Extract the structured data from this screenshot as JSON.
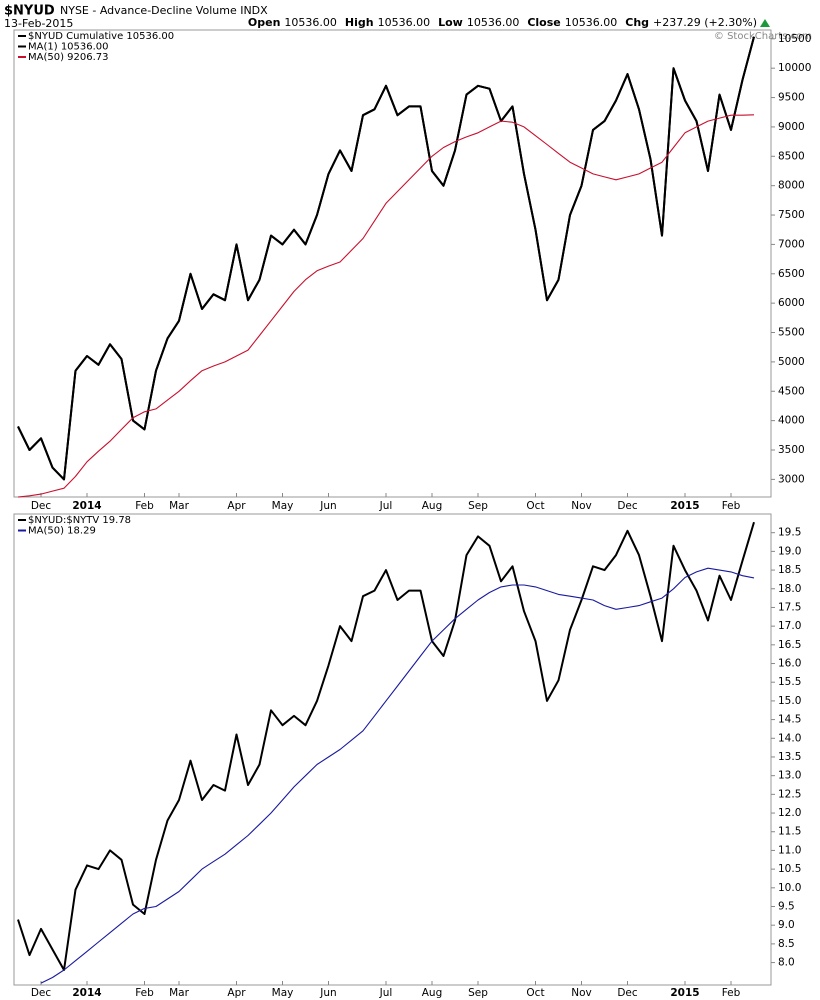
{
  "header": {
    "symbol": "$NYUD",
    "description": "NYSE - Advance-Decline Volume INDX",
    "date": "13-Feb-2015",
    "quote": [
      {
        "label": "Open",
        "value": "10536.00"
      },
      {
        "label": "High",
        "value": "10536.00"
      },
      {
        "label": "Low",
        "value": "10536.00"
      },
      {
        "label": "Close",
        "value": "10536.00"
      },
      {
        "label": "Chg",
        "value": "+237.29 (+2.30%)"
      }
    ],
    "watermark": "© StockCharts.com"
  },
  "chart_data": [
    {
      "type": "line",
      "categories": [
        null,
        null,
        "Dec",
        null,
        null,
        null,
        "2014",
        null,
        null,
        null,
        null,
        "Feb",
        null,
        null,
        "Mar",
        null,
        null,
        null,
        null,
        "Apr",
        null,
        null,
        null,
        "May",
        null,
        null,
        null,
        "Jun",
        null,
        null,
        null,
        null,
        "Jul",
        null,
        null,
        null,
        "Aug",
        null,
        null,
        null,
        "Sep",
        null,
        null,
        null,
        null,
        "Oct",
        null,
        null,
        null,
        "Nov",
        null,
        null,
        null,
        "Dec",
        null,
        null,
        null,
        null,
        "2015",
        null,
        null,
        null,
        "Feb",
        null,
        null
      ],
      "series": [
        {
          "name": "$NYUD Cumulative 10536.00",
          "color": "#000000",
          "values": [
            3900,
            3500,
            3700,
            3200,
            3000,
            4850,
            5100,
            4950,
            5300,
            5050,
            4000,
            3850,
            4850,
            5400,
            5700,
            6500,
            5900,
            6150,
            6050,
            7000,
            6050,
            6400,
            7150,
            7000,
            7250,
            7000,
            7500,
            8200,
            8600,
            8250,
            9200,
            9300,
            9700,
            9200,
            9350,
            9350,
            8250,
            8000,
            8600,
            9550,
            9700,
            9650,
            9100,
            9350,
            8200,
            7250,
            6050,
            6400,
            7500,
            8000,
            8950,
            9100,
            9450,
            9900,
            9300,
            8450,
            7150,
            10000,
            9450,
            9100,
            8250,
            9550,
            8950,
            9800,
            10536
          ]
        },
        {
          "name": "MA(1) 10536.00",
          "color": "#000000",
          "values": [
            3900,
            3500,
            3700,
            3200,
            3000,
            4850,
            5100,
            4950,
            5300,
            5050,
            4000,
            3850,
            4850,
            5400,
            5700,
            6500,
            5900,
            6150,
            6050,
            7000,
            6050,
            6400,
            7150,
            7000,
            7250,
            7000,
            7500,
            8200,
            8600,
            8250,
            9200,
            9300,
            9700,
            9200,
            9350,
            9350,
            8250,
            8000,
            8600,
            9550,
            9700,
            9650,
            9100,
            9350,
            8200,
            7250,
            6050,
            6400,
            7500,
            8000,
            8950,
            9100,
            9450,
            9900,
            9300,
            8450,
            7150,
            10000,
            9450,
            9100,
            8250,
            9550,
            8950,
            9800,
            10536
          ]
        },
        {
          "name": "MA(50) 9206.73",
          "color": "#c8102e",
          "values": [
            2700,
            2720,
            2750,
            2800,
            2850,
            3050,
            3300,
            3480,
            3650,
            3850,
            4050,
            4150,
            4200,
            4350,
            4500,
            4680,
            4850,
            4930,
            5000,
            5100,
            5200,
            5450,
            5700,
            5950,
            6200,
            6400,
            6550,
            6630,
            6700,
            6900,
            7100,
            7400,
            7700,
            7900,
            8100,
            8300,
            8500,
            8650,
            8750,
            8830,
            8900,
            9000,
            9100,
            9080,
            9000,
            8850,
            8700,
            8550,
            8400,
            8300,
            8200,
            8150,
            8100,
            8150,
            8200,
            8300,
            8400,
            8650,
            8900,
            9000,
            9100,
            9150,
            9200,
            9200,
            9206.73
          ]
        }
      ],
      "ylim": [
        2700,
        10650
      ],
      "yticks": [
        3000,
        3500,
        4000,
        4500,
        5000,
        5500,
        6000,
        6500,
        7000,
        7500,
        8000,
        8500,
        9000,
        9500,
        10000,
        10500
      ]
    },
    {
      "type": "line",
      "categories": [
        null,
        null,
        "Dec",
        null,
        null,
        null,
        "2014",
        null,
        null,
        null,
        null,
        "Feb",
        null,
        null,
        "Mar",
        null,
        null,
        null,
        null,
        "Apr",
        null,
        null,
        null,
        "May",
        null,
        null,
        null,
        "Jun",
        null,
        null,
        null,
        null,
        "Jul",
        null,
        null,
        null,
        "Aug",
        null,
        null,
        null,
        "Sep",
        null,
        null,
        null,
        null,
        "Oct",
        null,
        null,
        null,
        "Nov",
        null,
        null,
        null,
        "Dec",
        null,
        null,
        null,
        null,
        "2015",
        null,
        null,
        null,
        "Feb",
        null,
        null
      ],
      "series": [
        {
          "name": "$NYUD:$NYTV 19.78",
          "color": "#000000",
          "values": [
            9.15,
            8.2,
            8.9,
            8.35,
            7.8,
            9.95,
            10.6,
            10.5,
            11.0,
            10.75,
            9.55,
            9.3,
            10.75,
            11.8,
            12.35,
            13.4,
            12.35,
            12.75,
            12.6,
            14.1,
            12.75,
            13.3,
            14.75,
            14.35,
            14.6,
            14.35,
            15.0,
            15.95,
            17.0,
            16.6,
            17.8,
            17.95,
            18.5,
            17.7,
            17.95,
            17.95,
            16.6,
            16.2,
            17.15,
            18.9,
            19.4,
            19.15,
            18.2,
            18.6,
            17.4,
            16.6,
            15.0,
            15.55,
            16.9,
            17.7,
            18.6,
            18.5,
            18.9,
            19.55,
            18.9,
            17.8,
            16.6,
            19.15,
            18.5,
            17.95,
            17.15,
            18.35,
            17.7,
            18.75,
            19.78
          ]
        },
        {
          "name": "MA(50) 18.29",
          "color": "#1a1aa0",
          "values": [
            null,
            null,
            7.45,
            7.6,
            7.8,
            8.05,
            8.3,
            8.55,
            8.8,
            9.05,
            9.3,
            9.45,
            9.5,
            9.7,
            9.9,
            10.2,
            10.5,
            10.7,
            10.9,
            11.15,
            11.4,
            11.7,
            12.0,
            12.35,
            12.7,
            13.0,
            13.3,
            13.5,
            13.7,
            13.95,
            14.2,
            14.6,
            15.0,
            15.4,
            15.8,
            16.2,
            16.6,
            16.9,
            17.2,
            17.45,
            17.7,
            17.9,
            18.05,
            18.1,
            18.1,
            18.05,
            17.95,
            17.85,
            17.8,
            17.75,
            17.7,
            17.55,
            17.45,
            17.5,
            17.55,
            17.65,
            17.75,
            18.0,
            18.3,
            18.45,
            18.55,
            18.5,
            18.45,
            18.35,
            18.29
          ]
        }
      ],
      "ylim": [
        7.4,
        20.0
      ],
      "yticks": [
        {
          "value": 8,
          "label": "8.0"
        },
        8.5,
        {
          "value": 9,
          "label": "9.0"
        },
        9.5,
        {
          "value": 10,
          "label": "10.0"
        },
        10.5,
        {
          "value": 11,
          "label": "11.0"
        },
        11.5,
        {
          "value": 12,
          "label": "12.0"
        },
        12.5,
        {
          "value": 13,
          "label": "13.0"
        },
        13.5,
        {
          "value": 14,
          "label": "14.0"
        },
        14.5,
        {
          "value": 15,
          "label": "15.0"
        },
        15.5,
        {
          "value": 16,
          "label": "16.0"
        },
        16.5,
        {
          "value": 17,
          "label": "17.0"
        },
        17.5,
        {
          "value": 18,
          "label": "18.0"
        },
        18.5,
        {
          "value": 19,
          "label": "19.0"
        },
        19.5
      ]
    }
  ]
}
